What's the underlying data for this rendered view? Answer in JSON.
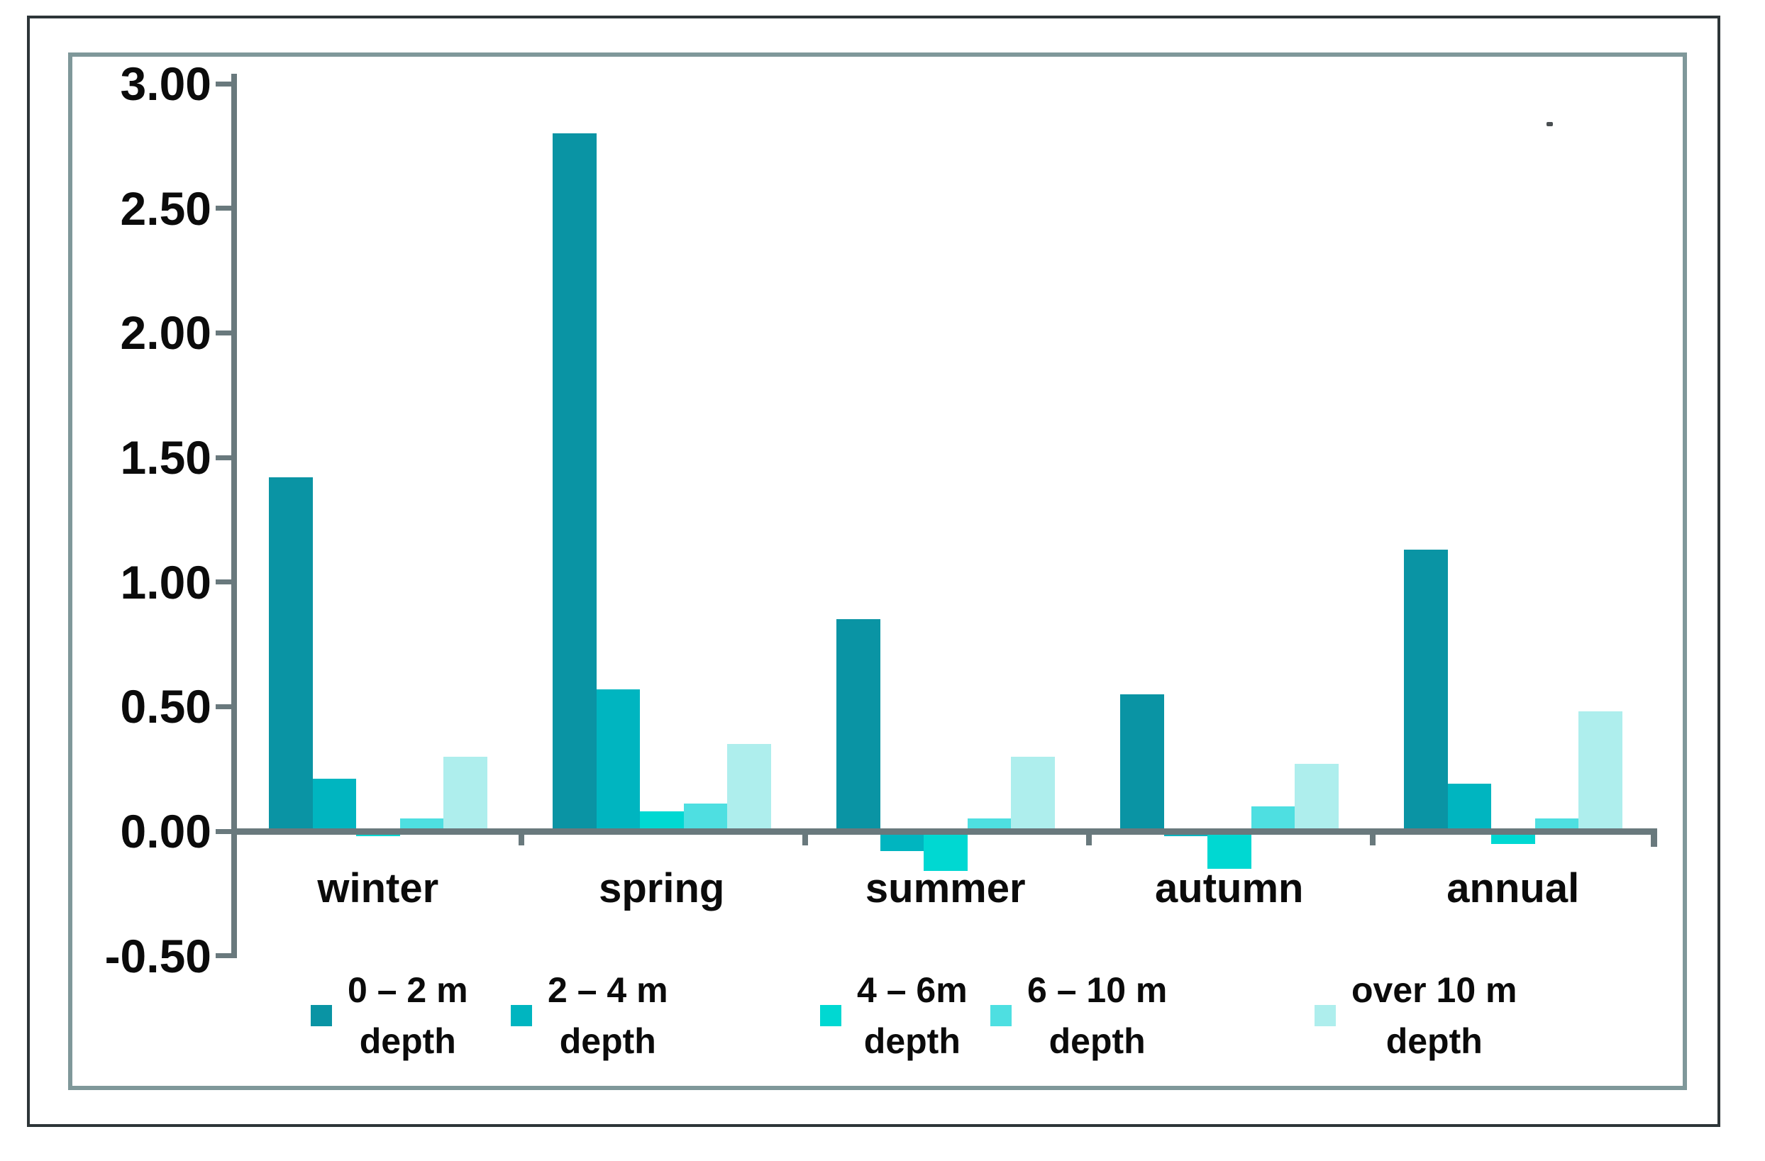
{
  "figure": {
    "background": "#ffffff",
    "outer_border_color": "#2d3538",
    "inner_border_color": "#7f989a",
    "axis_color": "#69797d",
    "text_color": "#0b0b0b"
  },
  "chart_data": {
    "type": "bar",
    "title": "",
    "xlabel": "",
    "ylabel": "",
    "grid": false,
    "legend_position": "bottom",
    "categories": [
      "winter",
      "spring",
      "summer",
      "autumn",
      "annual"
    ],
    "series": [
      {
        "name": "0 – 2 m depth",
        "color": "#0a94a4",
        "values": [
          1.42,
          2.8,
          0.85,
          0.55,
          1.13
        ]
      },
      {
        "name": "2 – 4 m depth",
        "color": "#00b5c0",
        "values": [
          0.21,
          0.57,
          -0.08,
          -0.02,
          0.19
        ]
      },
      {
        "name": "4 – 6m depth",
        "color": "#00d8d2",
        "values": [
          -0.02,
          0.08,
          -0.16,
          -0.15,
          -0.05
        ]
      },
      {
        "name": "6 – 10 m depth",
        "color": "#4edfe1",
        "values": [
          0.05,
          0.11,
          0.05,
          0.1,
          0.05
        ]
      },
      {
        "name": "over 10 m depth",
        "color": "#aeeeed",
        "values": [
          0.3,
          0.35,
          0.3,
          0.27,
          0.48
        ]
      }
    ],
    "ylim": [
      -0.5,
      3.0
    ],
    "yticks": [
      3.0,
      2.5,
      2.0,
      1.5,
      1.0,
      0.5,
      0.0,
      -0.5
    ],
    "ytick_labels": [
      "3.00",
      "2.50",
      "2.00",
      "1.50",
      "1.00",
      "0.50",
      "0.00",
      "-0.50"
    ],
    "legend": [
      {
        "line1": "0 – 2 m",
        "line2": "depth"
      },
      {
        "line1": "2 – 4 m",
        "line2": "depth"
      },
      {
        "line1": "4 – 6m",
        "line2": "depth"
      },
      {
        "line1": "6 – 10 m",
        "line2": "depth"
      },
      {
        "line1": "over 10 m",
        "line2": "depth"
      }
    ]
  }
}
